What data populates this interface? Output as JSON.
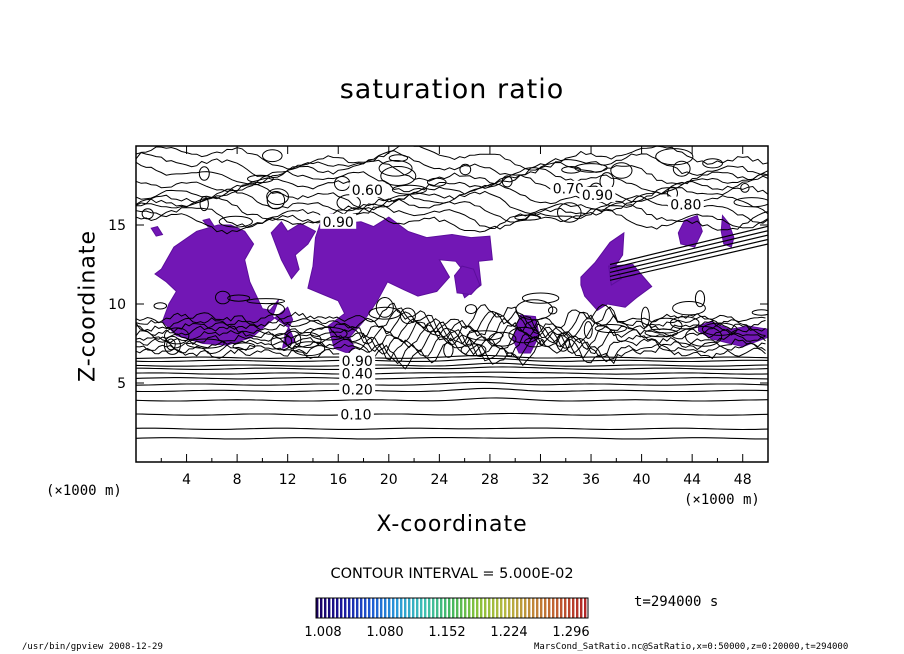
{
  "chart_data": {
    "type": "contour",
    "title": "saturation ratio",
    "xlabel": "X-coordinate",
    "ylabel": "Z-coordinate",
    "x_unit": "(×1000 m)",
    "y_unit": "(×1000 m)",
    "xlim": [
      0,
      50
    ],
    "ylim": [
      0,
      20
    ],
    "x_ticks": [
      "4",
      "8",
      "12",
      "16",
      "20",
      "24",
      "28",
      "32",
      "36",
      "40",
      "44",
      "48"
    ],
    "y_ticks": [
      "5",
      "10",
      "15"
    ],
    "contour_interval_label": "CONTOUR INTERVAL = 5.000E-02",
    "time_label": "t=294000 s",
    "contour_labels": [
      {
        "text": "0.10",
        "x": 17.4,
        "z": 3.0
      },
      {
        "text": "0.20",
        "x": 17.5,
        "z": 4.6
      },
      {
        "text": "0.40",
        "x": 17.5,
        "z": 5.6
      },
      {
        "text": "0.90",
        "x": 17.5,
        "z": 6.4
      },
      {
        "text": "0.60",
        "x": 18.3,
        "z": 17.2
      },
      {
        "text": "0.70",
        "x": 34.2,
        "z": 17.3
      },
      {
        "text": "0.90",
        "x": 36.5,
        "z": 16.9
      },
      {
        "text": "0.80",
        "x": 43.5,
        "z": 16.3
      },
      {
        "text": "0.90",
        "x": 16.0,
        "z": 15.2
      }
    ],
    "stratified_levels_z": [
      1.5,
      2.1,
      3.0,
      3.9,
      4.5,
      4.9,
      5.3,
      5.6,
      5.9,
      6.1,
      6.4,
      6.6
    ],
    "supersaturated_regions": [
      {
        "x": [
          2,
          3,
          4.8,
          6.5,
          7.5,
          8.6,
          9.3,
          8.6,
          9,
          9.6,
          10,
          10.6,
          11.3,
          10.8,
          12.1,
          12.6,
          11.6,
          11.8,
          12.4,
          12,
          10.8,
          9.2,
          7.2,
          5.3,
          3.2,
          2.1,
          2.6,
          3.2,
          2.4,
          1.5
        ],
        "z": [
          12.2,
          13.6,
          14.6,
          15,
          15,
          14.6,
          13.8,
          12.8,
          11.4,
          10.4,
          9.7,
          9.6,
          10.3,
          9.2,
          8.5,
          7.6,
          7.2,
          8.1,
          9,
          9.8,
          9,
          7.9,
          7.4,
          7.5,
          8,
          8.9,
          10,
          10.8,
          11.4,
          11.9
        ]
      },
      {
        "x": [
          10.7,
          11.5,
          12,
          13,
          14.2,
          13.6,
          12.6,
          12.9,
          12.3,
          11.5
        ],
        "z": [
          14.5,
          15.2,
          14.6,
          15.1,
          14.6,
          13.8,
          13.1,
          12.2,
          11.6,
          12.8
        ]
      },
      {
        "x": [
          14.8,
          15.5,
          16.5,
          17.8,
          18.8,
          20,
          21.5,
          23,
          25,
          26.5,
          28,
          28.2,
          27.1,
          27.3,
          26,
          25.4,
          26.6,
          25.3,
          24,
          24.8,
          23.8,
          22.3,
          21.2,
          19.9,
          19.1,
          18,
          16.9,
          17.3,
          16.7,
          15.7,
          15.2,
          16.5,
          16,
          14.8,
          13.6,
          14,
          14.2
        ],
        "z": [
          15.6,
          15.7,
          15.1,
          15.2,
          14.9,
          15.5,
          14.6,
          14.2,
          14.4,
          14.2,
          14.3,
          12.8,
          12.7,
          11.2,
          10.4,
          11.5,
          11.4,
          12.7,
          12.8,
          11.7,
          10.8,
          10.5,
          10.9,
          11.4,
          10.2,
          8.9,
          7.9,
          7.2,
          6.9,
          7.2,
          8.6,
          9.4,
          10.2,
          10.6,
          11,
          12.4,
          14.2
        ]
      },
      {
        "x": [
          25.4,
          26.5,
          27.2,
          26.7,
          25.8,
          25.2
        ],
        "z": [
          10.7,
          10.6,
          11.2,
          12.2,
          12.4,
          11.8
        ]
      },
      {
        "x": [
          30.4,
          31.6,
          31.9,
          31.2,
          30.3,
          29.8
        ],
        "z": [
          9.3,
          9.2,
          8,
          6.9,
          6.9,
          7.8
        ]
      },
      {
        "x": [
          35.2,
          36.3,
          37.5,
          38.6,
          38.5,
          37.9,
          38.4,
          37.6,
          37.4,
          39.3,
          40.8,
          39.6,
          38.7,
          37.3,
          36.5,
          35.5,
          35.2
        ],
        "z": [
          11.7,
          12.6,
          13.9,
          14.5,
          13.1,
          12.4,
          11.6,
          11.2,
          12.4,
          12.5,
          11.1,
          10.4,
          9.8,
          10,
          9.6,
          10.5,
          11.2
        ]
      },
      {
        "x": [
          43.4,
          44.4,
          44.8,
          44.2,
          43.1,
          42.9
        ],
        "z": [
          15.3,
          15.6,
          14.6,
          13.6,
          13.8,
          14.5
        ]
      },
      {
        "x": [
          46.4,
          46.9,
          47.3,
          47.1,
          46.5,
          46.3
        ],
        "z": [
          15.6,
          15.1,
          14.2,
          13.6,
          13.8,
          14.6
        ]
      },
      {
        "x": [
          45.5,
          47,
          48.5,
          50,
          50,
          49,
          48,
          47,
          45.5,
          44.5,
          44.5
        ],
        "z": [
          8.9,
          8.4,
          8.6,
          8.4,
          7.9,
          7.6,
          7.3,
          7.5,
          7.8,
          8.3,
          8.6
        ]
      },
      {
        "x": [
          1.2,
          1.7,
          2.1,
          1.6
        ],
        "z": [
          14.8,
          14.9,
          14.4,
          14.3
        ]
      },
      {
        "x": [
          5.3,
          5.8,
          6.2,
          5.7
        ],
        "z": [
          15.3,
          15.4,
          14.9,
          14.9
        ]
      }
    ]
  },
  "colorbar": {
    "tick_labels": [
      "1.008",
      "1.080",
      "1.152",
      "1.224",
      "1.296"
    ],
    "colors": [
      "#1a0060",
      "#1a1aa0",
      "#1e5ad2",
      "#2a9ad8",
      "#3fc0b2",
      "#44b860",
      "#8ac23a",
      "#b5b840",
      "#c08a3a",
      "#c05c30",
      "#b02626"
    ]
  },
  "colors": {
    "fill": "#7217b5",
    "fill_edge": "#5c0e9c",
    "contour": "#000000",
    "background": "#ffffff"
  },
  "footer": {
    "left": "/usr/bin/gpview  2008-12-29",
    "right": "MarsCond_SatRatio.nc@SatRatio,x=0:50000,z=0:20000,t=294000"
  }
}
